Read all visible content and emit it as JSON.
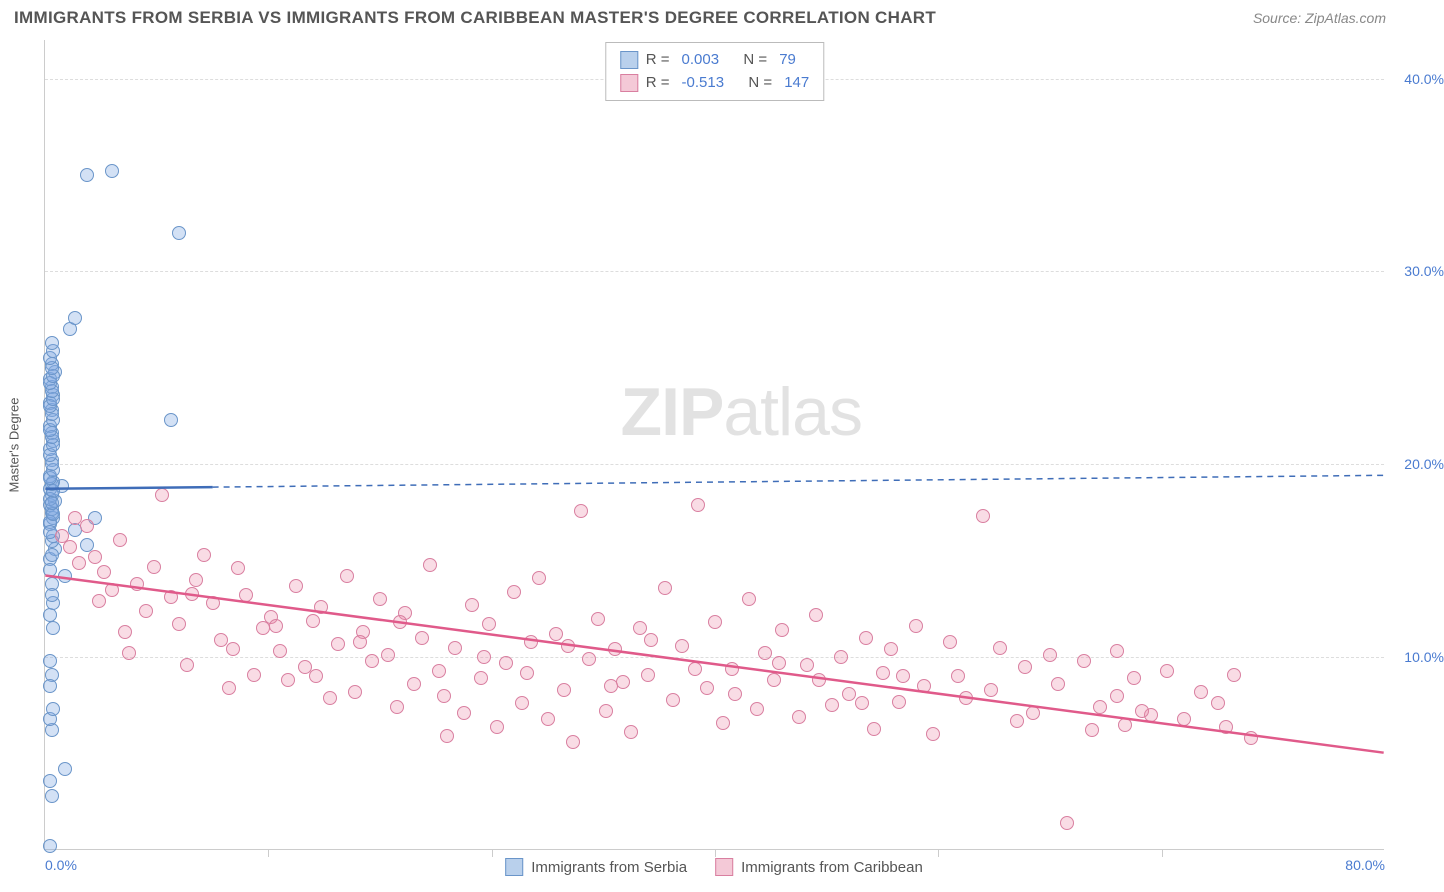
{
  "title": "IMMIGRANTS FROM SERBIA VS IMMIGRANTS FROM CARIBBEAN MASTER'S DEGREE CORRELATION CHART",
  "source": "Source: ZipAtlas.com",
  "ylabel": "Master's Degree",
  "watermark_zip": "ZIP",
  "watermark_atlas": "atlas",
  "chart": {
    "type": "scatter",
    "xlim": [
      0,
      80
    ],
    "ylim": [
      0,
      42
    ],
    "x_ticks": [
      0,
      80
    ],
    "x_tick_labels": [
      "0.0%",
      "80.0%"
    ],
    "x_minor_ticks": [
      13.3,
      26.7,
      40,
      53.3,
      66.7
    ],
    "y_gridlines": [
      10,
      20,
      30,
      40
    ],
    "y_tick_labels": [
      "10.0%",
      "20.0%",
      "30.0%",
      "40.0%"
    ],
    "background_color": "#ffffff",
    "grid_color": "#dddddd",
    "axis_label_color": "#4a7bd0"
  },
  "series": [
    {
      "name": "Immigrants from Serbia",
      "fill": "rgba(130,170,225,0.35)",
      "stroke": "#6a95c9",
      "swatch_fill": "#b9d0ec",
      "swatch_stroke": "#6a95c9",
      "R": "0.003",
      "N": "79",
      "trend": {
        "x1": 0,
        "y1": 18.7,
        "x2": 80,
        "y2": 19.4,
        "solid_until_x": 10,
        "color": "#3f6db8"
      },
      "points": [
        [
          0.3,
          0.2
        ],
        [
          0.4,
          2.8
        ],
        [
          0.3,
          3.6
        ],
        [
          1.2,
          4.2
        ],
        [
          0.4,
          6.2
        ],
        [
          0.3,
          6.8
        ],
        [
          0.5,
          7.3
        ],
        [
          0.4,
          9.1
        ],
        [
          0.3,
          9.8
        ],
        [
          0.5,
          11.5
        ],
        [
          0.4,
          13.8
        ],
        [
          1.2,
          14.2
        ],
        [
          0.3,
          15.1
        ],
        [
          0.6,
          15.6
        ],
        [
          2.5,
          15.8
        ],
        [
          0.4,
          16.0
        ],
        [
          1.8,
          16.6
        ],
        [
          0.3,
          16.9
        ],
        [
          0.5,
          17.2
        ],
        [
          3.0,
          17.2
        ],
        [
          0.4,
          17.5
        ],
        [
          0.3,
          17.9
        ],
        [
          0.6,
          18.1
        ],
        [
          0.4,
          18.4
        ],
        [
          0.3,
          18.7
        ],
        [
          1.0,
          18.9
        ],
        [
          0.5,
          19.1
        ],
        [
          0.3,
          19.4
        ],
        [
          0.4,
          20.2
        ],
        [
          0.3,
          20.8
        ],
        [
          0.5,
          21.2
        ],
        [
          0.4,
          21.6
        ],
        [
          0.3,
          22.0
        ],
        [
          7.5,
          22.3
        ],
        [
          0.4,
          22.8
        ],
        [
          0.3,
          23.2
        ],
        [
          0.5,
          23.6
        ],
        [
          0.4,
          24.0
        ],
        [
          0.3,
          24.4
        ],
        [
          0.6,
          24.8
        ],
        [
          0.4,
          25.2
        ],
        [
          1.5,
          27.0
        ],
        [
          1.8,
          27.6
        ],
        [
          8.0,
          32.0
        ],
        [
          2.5,
          35.0
        ],
        [
          4.0,
          35.2
        ],
        [
          0.3,
          14.5
        ],
        [
          0.4,
          15.3
        ],
        [
          0.5,
          16.3
        ],
        [
          0.3,
          17.0
        ],
        [
          0.4,
          17.7
        ],
        [
          0.3,
          18.2
        ],
        [
          0.5,
          18.6
        ],
        [
          0.4,
          19.0
        ],
        [
          0.3,
          19.3
        ],
        [
          0.5,
          19.7
        ],
        [
          0.4,
          20.0
        ],
        [
          0.3,
          20.5
        ],
        [
          0.5,
          21.0
        ],
        [
          0.4,
          21.4
        ],
        [
          0.3,
          21.8
        ],
        [
          0.5,
          22.3
        ],
        [
          0.4,
          22.6
        ],
        [
          0.3,
          23.0
        ],
        [
          0.5,
          23.4
        ],
        [
          0.4,
          23.8
        ],
        [
          0.3,
          24.2
        ],
        [
          0.5,
          24.6
        ],
        [
          0.4,
          25.0
        ],
        [
          0.3,
          25.5
        ],
        [
          0.5,
          25.9
        ],
        [
          0.4,
          26.3
        ],
        [
          0.3,
          12.2
        ],
        [
          0.5,
          12.8
        ],
        [
          0.4,
          13.2
        ],
        [
          0.3,
          16.5
        ],
        [
          0.5,
          17.4
        ],
        [
          0.4,
          18.0
        ],
        [
          0.3,
          8.5
        ]
      ]
    },
    {
      "name": "Immigrants from Caribbean",
      "fill": "rgba(235,140,170,0.30)",
      "stroke": "#d97fa0",
      "swatch_fill": "#f4c9d7",
      "swatch_stroke": "#d97fa0",
      "R": "-0.513",
      "N": "147",
      "trend": {
        "x1": 0,
        "y1": 14.2,
        "x2": 80,
        "y2": 5.0,
        "solid_until_x": 80,
        "color": "#e05a8a"
      },
      "points": [
        [
          1.0,
          16.3
        ],
        [
          1.5,
          15.7
        ],
        [
          2.0,
          14.9
        ],
        [
          2.5,
          16.8
        ],
        [
          1.8,
          17.2
        ],
        [
          3.0,
          15.2
        ],
        [
          3.5,
          14.4
        ],
        [
          4.0,
          13.5
        ],
        [
          4.5,
          16.1
        ],
        [
          5.0,
          10.2
        ],
        [
          5.5,
          13.8
        ],
        [
          6.0,
          12.4
        ],
        [
          7.0,
          18.4
        ],
        [
          7.5,
          13.1
        ],
        [
          8.0,
          11.7
        ],
        [
          8.5,
          9.6
        ],
        [
          9.0,
          14.0
        ],
        [
          9.5,
          15.3
        ],
        [
          10.0,
          12.8
        ],
        [
          10.5,
          10.9
        ],
        [
          11.0,
          8.4
        ],
        [
          11.5,
          14.6
        ],
        [
          12.0,
          13.2
        ],
        [
          12.5,
          9.1
        ],
        [
          13.0,
          11.5
        ],
        [
          13.5,
          12.1
        ],
        [
          14.0,
          10.3
        ],
        [
          14.5,
          8.8
        ],
        [
          15.0,
          13.7
        ],
        [
          15.5,
          9.5
        ],
        [
          16.0,
          11.9
        ],
        [
          16.5,
          12.6
        ],
        [
          17.0,
          7.9
        ],
        [
          17.5,
          10.7
        ],
        [
          18.0,
          14.2
        ],
        [
          18.5,
          8.2
        ],
        [
          19.0,
          11.3
        ],
        [
          19.5,
          9.8
        ],
        [
          20.0,
          13.0
        ],
        [
          20.5,
          10.1
        ],
        [
          21.0,
          7.4
        ],
        [
          21.5,
          12.3
        ],
        [
          22.0,
          8.6
        ],
        [
          22.5,
          11.0
        ],
        [
          23.0,
          14.8
        ],
        [
          23.5,
          9.3
        ],
        [
          24.0,
          5.9
        ],
        [
          24.5,
          10.5
        ],
        [
          25.0,
          7.1
        ],
        [
          25.5,
          12.7
        ],
        [
          26.0,
          8.9
        ],
        [
          26.5,
          11.7
        ],
        [
          27.0,
          6.4
        ],
        [
          27.5,
          9.7
        ],
        [
          28.0,
          13.4
        ],
        [
          28.5,
          7.6
        ],
        [
          29.0,
          10.8
        ],
        [
          29.5,
          14.1
        ],
        [
          30.0,
          6.8
        ],
        [
          30.5,
          11.2
        ],
        [
          31.0,
          8.3
        ],
        [
          31.5,
          5.6
        ],
        [
          32.0,
          17.6
        ],
        [
          32.5,
          9.9
        ],
        [
          33.0,
          12.0
        ],
        [
          33.5,
          7.2
        ],
        [
          34.0,
          10.4
        ],
        [
          34.5,
          8.7
        ],
        [
          35.0,
          6.1
        ],
        [
          35.5,
          11.5
        ],
        [
          36.0,
          9.1
        ],
        [
          37.0,
          13.6
        ],
        [
          37.5,
          7.8
        ],
        [
          38.0,
          10.6
        ],
        [
          39.0,
          17.9
        ],
        [
          39.5,
          8.4
        ],
        [
          40.0,
          11.8
        ],
        [
          40.5,
          6.6
        ],
        [
          41.0,
          9.4
        ],
        [
          42.0,
          13.0
        ],
        [
          42.5,
          7.3
        ],
        [
          43.0,
          10.2
        ],
        [
          43.5,
          8.8
        ],
        [
          44.0,
          11.4
        ],
        [
          45.0,
          6.9
        ],
        [
          45.5,
          9.6
        ],
        [
          46.0,
          12.2
        ],
        [
          47.0,
          7.5
        ],
        [
          47.5,
          10.0
        ],
        [
          48.0,
          8.1
        ],
        [
          49.0,
          11.0
        ],
        [
          49.5,
          6.3
        ],
        [
          50.0,
          9.2
        ],
        [
          50.5,
          10.4
        ],
        [
          51.0,
          7.7
        ],
        [
          52.0,
          11.6
        ],
        [
          52.5,
          8.5
        ],
        [
          53.0,
          6.0
        ],
        [
          54.0,
          10.8
        ],
        [
          54.5,
          9.0
        ],
        [
          55.0,
          7.9
        ],
        [
          56.0,
          17.3
        ],
        [
          56.5,
          8.3
        ],
        [
          57.0,
          10.5
        ],
        [
          58.0,
          6.7
        ],
        [
          58.5,
          9.5
        ],
        [
          59.0,
          7.1
        ],
        [
          60.0,
          10.1
        ],
        [
          60.5,
          8.6
        ],
        [
          61.0,
          1.4
        ],
        [
          62.0,
          9.8
        ],
        [
          63.0,
          7.4
        ],
        [
          64.0,
          10.3
        ],
        [
          64.5,
          6.5
        ],
        [
          65.0,
          8.9
        ],
        [
          66.0,
          7.0
        ],
        [
          67.0,
          9.3
        ],
        [
          68.0,
          6.8
        ],
        [
          69.0,
          8.2
        ],
        [
          70.0,
          7.6
        ],
        [
          70.5,
          6.4
        ],
        [
          71.0,
          9.1
        ],
        [
          72.0,
          5.8
        ],
        [
          62.5,
          6.2
        ],
        [
          64.0,
          8.0
        ],
        [
          65.5,
          7.2
        ],
        [
          3.2,
          12.9
        ],
        [
          4.8,
          11.3
        ],
        [
          6.5,
          14.7
        ],
        [
          8.8,
          13.3
        ],
        [
          11.2,
          10.4
        ],
        [
          13.8,
          11.6
        ],
        [
          16.2,
          9.0
        ],
        [
          18.8,
          10.8
        ],
        [
          21.2,
          11.8
        ],
        [
          23.8,
          8.0
        ],
        [
          26.2,
          10.0
        ],
        [
          28.8,
          9.2
        ],
        [
          31.2,
          10.6
        ],
        [
          33.8,
          8.5
        ],
        [
          36.2,
          10.9
        ],
        [
          38.8,
          9.4
        ],
        [
          41.2,
          8.1
        ],
        [
          43.8,
          9.7
        ],
        [
          46.2,
          8.8
        ],
        [
          48.8,
          7.6
        ],
        [
          51.2,
          9.0
        ]
      ]
    }
  ],
  "legend_top": {
    "R_label": "R =",
    "N_label": "N ="
  }
}
